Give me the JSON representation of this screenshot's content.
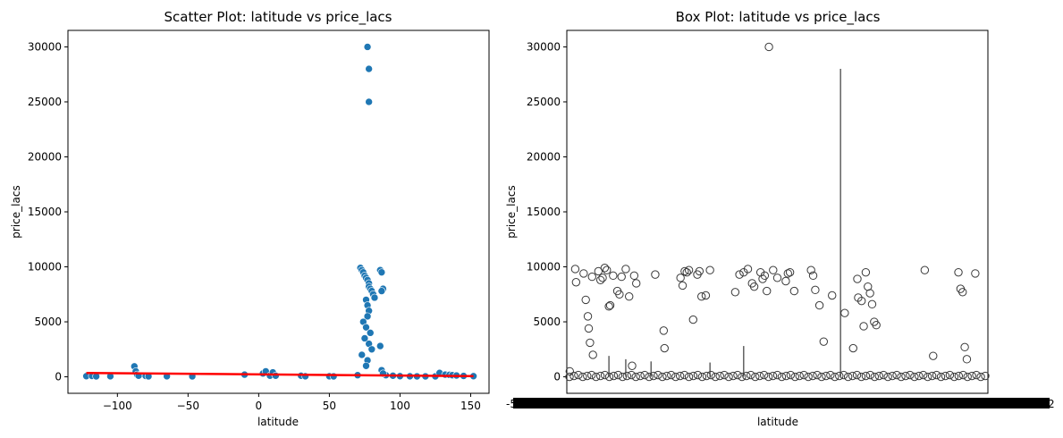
{
  "chart_data": [
    {
      "type": "scatter",
      "title": "Scatter Plot: latitude vs price_lacs",
      "xlabel": "latitude",
      "ylabel": "price_lacs",
      "xlim": [
        -135,
        163
      ],
      "ylim": [
        -1500,
        31500
      ],
      "x_ticks": [
        -100,
        -50,
        0,
        50,
        100,
        150
      ],
      "y_ticks": [
        0,
        5000,
        10000,
        15000,
        20000,
        25000,
        30000
      ],
      "grid": false,
      "point_color": "#1f77b4",
      "trend_color": "#ff0000",
      "series": [
        {
          "x": [
            -122,
            -118,
            -115,
            -105,
            -88,
            -87,
            -86,
            -85,
            -80,
            -78,
            -65,
            -47,
            -10,
            3,
            5,
            8,
            10,
            12,
            30,
            33,
            50,
            53,
            70,
            72,
            73,
            74,
            75,
            76,
            77,
            78,
            78,
            79,
            80,
            81,
            82,
            86,
            87,
            88,
            90,
            95,
            100,
            107,
            112,
            118,
            125,
            128,
            132,
            135,
            137,
            140,
            145,
            152,
            76,
            77,
            78,
            77,
            74,
            76,
            79,
            75,
            78,
            80,
            73,
            77,
            76,
            86,
            87,
            87,
            88,
            77,
            78,
            78
          ],
          "y": [
            60,
            80,
            40,
            50,
            950,
            500,
            200,
            100,
            80,
            40,
            50,
            40,
            200,
            300,
            500,
            100,
            400,
            100,
            100,
            50,
            50,
            40,
            150,
            9900,
            9700,
            9500,
            9200,
            9000,
            8800,
            8500,
            8200,
            8000,
            7800,
            7500,
            7200,
            9700,
            9500,
            8000,
            150,
            100,
            60,
            50,
            40,
            40,
            40,
            350,
            200,
            180,
            150,
            120,
            80,
            60,
            7000,
            6500,
            6000,
            5500,
            5000,
            4500,
            4000,
            3500,
            3000,
            2500,
            2000,
            1500,
            1000,
            2800,
            7800,
            600,
            300,
            30000,
            28000,
            25000
          ]
        }
      ],
      "trend_line": {
        "x": [
          -122,
          152
        ],
        "y": [
          350,
          60
        ]
      }
    },
    {
      "type": "box",
      "title": "Box Plot: latitude vs price_lacs",
      "xlabel": "latitude",
      "ylabel": "price_lacs",
      "ylim": [
        -1500,
        31500
      ],
      "y_ticks": [
        0,
        5000,
        10000,
        15000,
        20000,
        25000,
        30000
      ],
      "x_tick_left_fragment": "-5",
      "x_tick_right_fragment": "2",
      "grid": false,
      "marker_color": "#3a3a3a",
      "outliers": [
        {
          "x_frac": 0.007,
          "y": 500
        },
        {
          "x_frac": 0.02,
          "y": 9800
        },
        {
          "x_frac": 0.022,
          "y": 8600
        },
        {
          "x_frac": 0.04,
          "y": 9400
        },
        {
          "x_frac": 0.045,
          "y": 7000
        },
        {
          "x_frac": 0.05,
          "y": 5500
        },
        {
          "x_frac": 0.052,
          "y": 4400
        },
        {
          "x_frac": 0.055,
          "y": 3100
        },
        {
          "x_frac": 0.06,
          "y": 9100
        },
        {
          "x_frac": 0.062,
          "y": 2000
        },
        {
          "x_frac": 0.075,
          "y": 9600
        },
        {
          "x_frac": 0.08,
          "y": 8800
        },
        {
          "x_frac": 0.085,
          "y": 9000
        },
        {
          "x_frac": 0.09,
          "y": 9900
        },
        {
          "x_frac": 0.095,
          "y": 9700
        },
        {
          "x_frac": 0.1,
          "y": 6400
        },
        {
          "x_frac": 0.103,
          "y": 6500
        },
        {
          "x_frac": 0.11,
          "y": 9200
        },
        {
          "x_frac": 0.12,
          "y": 7800
        },
        {
          "x_frac": 0.125,
          "y": 7500
        },
        {
          "x_frac": 0.13,
          "y": 9100
        },
        {
          "x_frac": 0.14,
          "y": 9800
        },
        {
          "x_frac": 0.148,
          "y": 7300
        },
        {
          "x_frac": 0.155,
          "y": 1000
        },
        {
          "x_frac": 0.16,
          "y": 9200
        },
        {
          "x_frac": 0.165,
          "y": 8500
        },
        {
          "x_frac": 0.21,
          "y": 9300
        },
        {
          "x_frac": 0.23,
          "y": 4200
        },
        {
          "x_frac": 0.232,
          "y": 2600
        },
        {
          "x_frac": 0.27,
          "y": 9000
        },
        {
          "x_frac": 0.275,
          "y": 8300
        },
        {
          "x_frac": 0.28,
          "y": 9600
        },
        {
          "x_frac": 0.285,
          "y": 9500
        },
        {
          "x_frac": 0.29,
          "y": 9700
        },
        {
          "x_frac": 0.3,
          "y": 5200
        },
        {
          "x_frac": 0.31,
          "y": 9300
        },
        {
          "x_frac": 0.315,
          "y": 9600
        },
        {
          "x_frac": 0.32,
          "y": 7300
        },
        {
          "x_frac": 0.33,
          "y": 7400
        },
        {
          "x_frac": 0.34,
          "y": 9700
        },
        {
          "x_frac": 0.4,
          "y": 7700
        },
        {
          "x_frac": 0.41,
          "y": 9300
        },
        {
          "x_frac": 0.42,
          "y": 9500
        },
        {
          "x_frac": 0.43,
          "y": 9800
        },
        {
          "x_frac": 0.44,
          "y": 8500
        },
        {
          "x_frac": 0.445,
          "y": 8200
        },
        {
          "x_frac": 0.46,
          "y": 9500
        },
        {
          "x_frac": 0.465,
          "y": 8900
        },
        {
          "x_frac": 0.47,
          "y": 9200
        },
        {
          "x_frac": 0.475,
          "y": 7800
        },
        {
          "x_frac": 0.48,
          "y": 30000
        },
        {
          "x_frac": 0.49,
          "y": 9700
        },
        {
          "x_frac": 0.5,
          "y": 9000
        },
        {
          "x_frac": 0.52,
          "y": 8700
        },
        {
          "x_frac": 0.525,
          "y": 9400
        },
        {
          "x_frac": 0.53,
          "y": 9500
        },
        {
          "x_frac": 0.54,
          "y": 7800
        },
        {
          "x_frac": 0.58,
          "y": 9700
        },
        {
          "x_frac": 0.585,
          "y": 9200
        },
        {
          "x_frac": 0.59,
          "y": 7900
        },
        {
          "x_frac": 0.6,
          "y": 6500
        },
        {
          "x_frac": 0.61,
          "y": 3200
        },
        {
          "x_frac": 0.63,
          "y": 7400
        },
        {
          "x_frac": 0.66,
          "y": 5800
        },
        {
          "x_frac": 0.68,
          "y": 2600
        },
        {
          "x_frac": 0.69,
          "y": 8900
        },
        {
          "x_frac": 0.692,
          "y": 7200
        },
        {
          "x_frac": 0.7,
          "y": 6900
        },
        {
          "x_frac": 0.705,
          "y": 4600
        },
        {
          "x_frac": 0.71,
          "y": 9500
        },
        {
          "x_frac": 0.715,
          "y": 8200
        },
        {
          "x_frac": 0.72,
          "y": 7600
        },
        {
          "x_frac": 0.725,
          "y": 6600
        },
        {
          "x_frac": 0.73,
          "y": 5000
        },
        {
          "x_frac": 0.735,
          "y": 4700
        },
        {
          "x_frac": 0.85,
          "y": 9700
        },
        {
          "x_frac": 0.87,
          "y": 1900
        },
        {
          "x_frac": 0.93,
          "y": 9500
        },
        {
          "x_frac": 0.935,
          "y": 8000
        },
        {
          "x_frac": 0.94,
          "y": 7700
        },
        {
          "x_frac": 0.945,
          "y": 2700
        },
        {
          "x_frac": 0.95,
          "y": 1600
        },
        {
          "x_frac": 0.97,
          "y": 9400
        }
      ],
      "whiskers": [
        {
          "x_frac": 0.1,
          "y_low": 0,
          "y_high": 1900
        },
        {
          "x_frac": 0.14,
          "y_low": 0,
          "y_high": 1600
        },
        {
          "x_frac": 0.2,
          "y_low": 0,
          "y_high": 1400
        },
        {
          "x_frac": 0.34,
          "y_low": 0,
          "y_high": 1300
        },
        {
          "x_frac": 0.42,
          "y_low": 0,
          "y_high": 2800
        },
        {
          "x_frac": 0.65,
          "y_low": 0,
          "y_high": 28000
        }
      ]
    }
  ]
}
